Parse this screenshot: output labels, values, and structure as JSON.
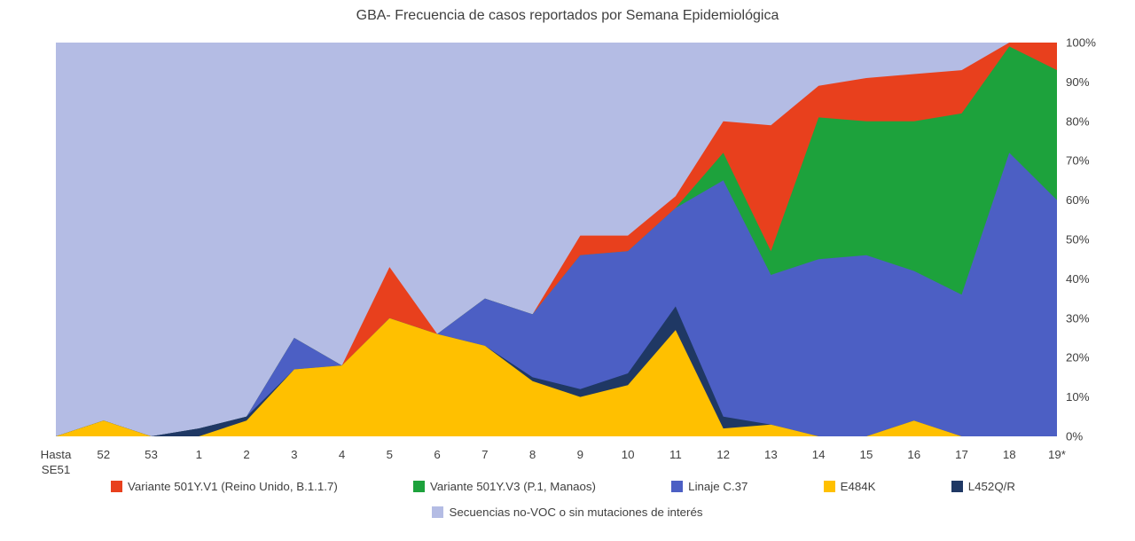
{
  "chart_data": {
    "type": "area",
    "stacked": true,
    "percent": true,
    "title": "GBA- Frecuencia de casos reportados por Semana Epidemiológica",
    "categories": [
      "Hasta SE51",
      "52",
      "53",
      "1",
      "2",
      "3",
      "4",
      "5",
      "6",
      "7",
      "8",
      "9",
      "10",
      "11",
      "12",
      "13",
      "14",
      "15",
      "16",
      "17",
      "18",
      "19*"
    ],
    "ylim": [
      0,
      100
    ],
    "y_ticks": [
      "0%",
      "10%",
      "20%",
      "30%",
      "40%",
      "50%",
      "60%",
      "70%",
      "80%",
      "90%",
      "100%"
    ],
    "y_axis_position": "right",
    "legend_position": "bottom",
    "grid": false,
    "series": [
      {
        "name": "E484K",
        "color": "#FFC000",
        "values": [
          0,
          4,
          0,
          0,
          4,
          17,
          18,
          30,
          26,
          23,
          14,
          10,
          13,
          27,
          2,
          3,
          0,
          0,
          4,
          0,
          0,
          0
        ]
      },
      {
        "name": "L452Q/R",
        "color": "#1F3864",
        "values": [
          0,
          0,
          0,
          2,
          1,
          0,
          0,
          0,
          0,
          0,
          1,
          2,
          3,
          6,
          3,
          0,
          0,
          0,
          0,
          0,
          0,
          0
        ]
      },
      {
        "name": "Linaje C.37",
        "color": "#4C5FC4",
        "values": [
          0,
          0,
          0,
          0,
          0,
          8,
          0,
          0,
          0,
          12,
          16,
          34,
          31,
          25,
          60,
          38,
          45,
          46,
          38,
          36,
          72,
          60
        ]
      },
      {
        "name": "Variante 501Y.V3 (P.1, Manaos)",
        "color": "#1DA23C",
        "values": [
          0,
          0,
          0,
          0,
          0,
          0,
          0,
          0,
          0,
          0,
          0,
          0,
          0,
          0,
          7,
          6,
          36,
          34,
          38,
          46,
          27,
          33
        ]
      },
      {
        "name": "Variante 501Y.V1 (Reino Unido, B.1.1.7)",
        "color": "#E8401D",
        "values": [
          0,
          0,
          0,
          0,
          0,
          0,
          0,
          13,
          0,
          0,
          0,
          5,
          4,
          3,
          8,
          32,
          8,
          11,
          12,
          11,
          1,
          7
        ]
      },
      {
        "name": "Secuencias no-VOC o sin mutaciones de interés",
        "color": "#B4BCE4",
        "background": true
      }
    ],
    "legend": {
      "row1": [
        "Variante 501Y.V1 (Reino Unido, B.1.1.7)",
        "Variante 501Y.V3 (P.1, Manaos)",
        "Linaje C.37",
        "E484K",
        "L452Q/R"
      ],
      "row2": [
        "Secuencias no-VOC o sin mutaciones de interés"
      ]
    }
  }
}
